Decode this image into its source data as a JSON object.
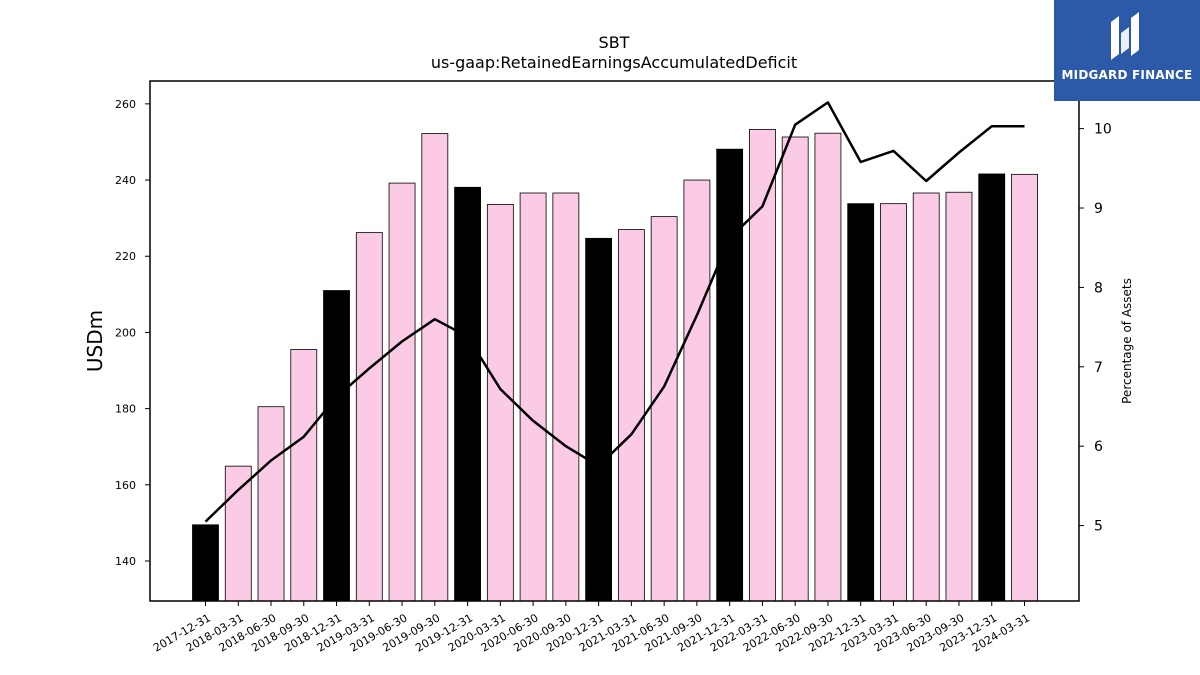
{
  "chart_data": {
    "type": "bar",
    "title": "SBT",
    "subtitle": "us-gaap:RetainedEarningsAccumulatedDeficit",
    "xlabel": "",
    "ylabel": "USDm",
    "y2label": "Percentage of Assets",
    "ylim": [
      129.5,
      266
    ],
    "y2lim": [
      4.05,
      10.6
    ],
    "yticks": [
      140,
      160,
      180,
      200,
      220,
      240,
      260
    ],
    "y2ticks": [
      5,
      6,
      7,
      8,
      9,
      10
    ],
    "grid": false,
    "categories": [
      "2017-12-31",
      "2018-03-31",
      "2018-06-30",
      "2018-09-30",
      "2018-12-31",
      "2019-03-31",
      "2019-06-30",
      "2019-09-30",
      "2019-12-31",
      "2020-03-31",
      "2020-06-30",
      "2020-09-30",
      "2020-12-31",
      "2021-03-31",
      "2021-06-30",
      "2021-09-30",
      "2021-12-31",
      "2022-03-31",
      "2022-06-30",
      "2022-09-30",
      "2022-12-31",
      "2023-03-31",
      "2023-06-30",
      "2023-09-30",
      "2023-12-31",
      "2024-03-31"
    ],
    "series": [
      {
        "type": "bar",
        "values": [
          149.5,
          164.9,
          180.5,
          195.5,
          211.0,
          226.2,
          239.2,
          252.2,
          238.1,
          233.6,
          236.6,
          236.6,
          224.7,
          227.0,
          230.4,
          240.0,
          248.1,
          253.3,
          251.3,
          252.3,
          233.8,
          233.8,
          236.6,
          236.8,
          241.6,
          241.5
        ],
        "highlight": [
          true,
          false,
          false,
          false,
          true,
          false,
          false,
          false,
          true,
          false,
          false,
          false,
          true,
          false,
          false,
          false,
          true,
          false,
          false,
          false,
          true,
          false,
          false,
          false,
          true,
          false
        ]
      },
      {
        "type": "line",
        "axis": "right",
        "values": [
          5.05,
          5.45,
          5.82,
          6.12,
          6.62,
          6.98,
          7.32,
          7.6,
          7.38,
          6.72,
          6.32,
          6.0,
          5.75,
          6.15,
          6.75,
          7.65,
          8.62,
          9.02,
          10.05,
          10.33,
          9.58,
          9.72,
          9.34,
          9.7,
          10.03,
          10.03
        ]
      }
    ],
    "colors": {
      "highlight_bar": "#000000",
      "bar": "#fbcae4",
      "bar_edge": "#000000",
      "line": "#000000"
    }
  },
  "logo": {
    "text": "MIDGARD FINANCE",
    "bg": "#2c5aa8"
  }
}
